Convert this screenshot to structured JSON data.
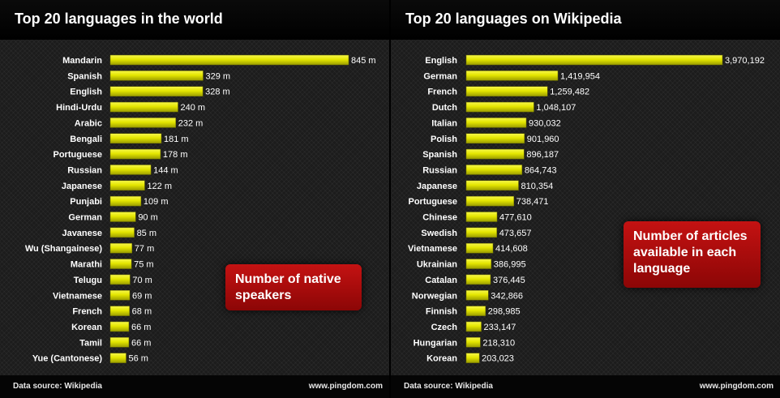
{
  "panels": {
    "left": {
      "title": "Top 20 languages in the world",
      "callout": "Number of native speakers",
      "source": "Data source: Wikipedia",
      "site": "www.pingdom.com"
    },
    "right": {
      "title": "Top 20 languages on Wikipedia",
      "callout": "Number of articles available in each language",
      "source": "Data source: Wikipedia",
      "site": "www.pingdom.com"
    }
  },
  "colors": {
    "bar": "#e4e600",
    "bar_dark": "#9a9c00",
    "callout": "#b00d0d"
  },
  "chart_data": [
    {
      "type": "bar",
      "orientation": "horizontal",
      "title": "Top 20 languages in the world",
      "categories": [
        "Mandarin",
        "Spanish",
        "English",
        "Hindi-Urdu",
        "Arabic",
        "Bengali",
        "Portuguese",
        "Russian",
        "Japanese",
        "Punjabi",
        "German",
        "Javanese",
        "Wu (Shangainese)",
        "Marathi",
        "Telugu",
        "Vietnamese",
        "French",
        "Korean",
        "Tamil",
        "Yue (Cantonese)"
      ],
      "values": [
        845,
        329,
        328,
        240,
        232,
        181,
        178,
        144,
        122,
        109,
        90,
        85,
        77,
        75,
        70,
        69,
        68,
        66,
        66,
        56
      ],
      "value_labels": [
        "845 m",
        "329 m",
        "328 m",
        "240 m",
        "232 m",
        "181 m",
        "178 m",
        "144 m",
        "122 m",
        "109 m",
        "90 m",
        "85 m",
        "77 m",
        "75 m",
        "70 m",
        "69 m",
        "68 m",
        "66 m",
        "66 m",
        "56 m"
      ],
      "unit": "millions of native speakers",
      "xlim": [
        0,
        845
      ],
      "grid": false
    },
    {
      "type": "bar",
      "orientation": "horizontal",
      "title": "Top 20 languages on Wikipedia",
      "categories": [
        "English",
        "German",
        "French",
        "Dutch",
        "Italian",
        "Polish",
        "Spanish",
        "Russian",
        "Japanese",
        "Portuguese",
        "Chinese",
        "Swedish",
        "Vietnamese",
        "Ukrainian",
        "Catalan",
        "Norwegian",
        "Finnish",
        "Czech",
        "Hungarian",
        "Korean"
      ],
      "values": [
        3970192,
        1419954,
        1259482,
        1048107,
        930032,
        901960,
        896187,
        864743,
        810354,
        738471,
        477610,
        473657,
        414608,
        386995,
        376445,
        342866,
        298985,
        233147,
        218310,
        203023
      ],
      "value_labels": [
        "3,970,192",
        "1,419,954",
        "1,259,482",
        "1,048,107",
        "930,032",
        "901,960",
        "896,187",
        "864,743",
        "810,354",
        "738,471",
        "477,610",
        "473,657",
        "414,608",
        "386,995",
        "376,445",
        "342,866",
        "298,985",
        "233,147",
        "218,310",
        "203,023"
      ],
      "unit": "articles",
      "xlim": [
        0,
        3970192
      ],
      "grid": false
    }
  ]
}
